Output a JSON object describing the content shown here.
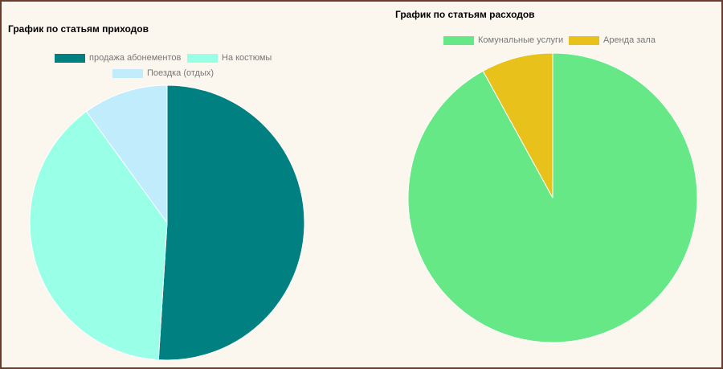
{
  "chart_data": [
    {
      "type": "pie",
      "title": "График по статьям приходов",
      "labels": [
        "продажа абонементов",
        "На костюмы",
        "Поездка (отдых)"
      ],
      "values": [
        51,
        39,
        10
      ],
      "colors": [
        "#008080",
        "#99ffe6",
        "#c0ecfc"
      ],
      "legend": "top"
    },
    {
      "type": "pie",
      "title": "График по статьям расходов",
      "labels": [
        "Комунальные услуги",
        "Аренда зала"
      ],
      "values": [
        92,
        8
      ],
      "colors": [
        "#66e886",
        "#e8c21a"
      ],
      "legend": "top"
    }
  ]
}
